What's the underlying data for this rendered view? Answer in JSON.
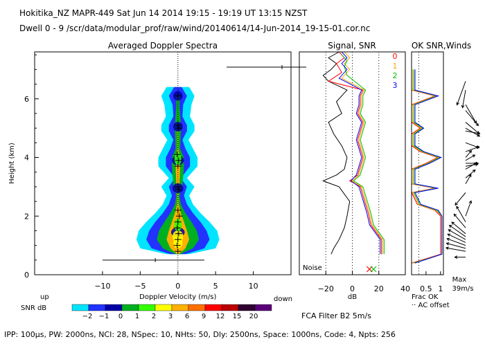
{
  "header": {
    "line1": "Hokitika_NZ  MAPR-449  Sat Jun 14 2014 19:15 - 19:19 UT 13:15 NZST",
    "line2": "Dwell  0 - 9  /scr/data/modular_prof/raw/wind/20140614/14-Jun-2014_19-15-01.cor.nc"
  },
  "footer": "IPP: 100μs,  PW: 2000ns,  NCI: 28,  NSpec: 10,  NHts: 50,  Dly: 2500ns,  Space: 1000ns,  Code: 4,  Npts: 256",
  "colors": {
    "snr_scale": [
      "#00e5ff",
      "#2233ff",
      "#0000a8",
      "#00b020",
      "#33ff00",
      "#ffff00",
      "#ffb000",
      "#ff7000",
      "#ff0000",
      "#bb0000",
      "#300030",
      "#5a007a"
    ],
    "consensus": [
      "#ff0000",
      "#ffa500",
      "#00c000",
      "#0000ff"
    ]
  },
  "chart_data": [
    {
      "type": "heatmap",
      "title": "Averaged Doppler Spectra",
      "xlabel": "Doppler Velocity (m/s)",
      "ylabel": "Height (km)",
      "xlim": [
        -19,
        15
      ],
      "ylim": [
        0,
        7.6
      ],
      "xticks": [
        -10,
        -5,
        0,
        5,
        10
      ],
      "yticks": [
        0,
        2,
        4,
        6
      ],
      "up_label": "up",
      "down_label": "down",
      "colorbar": {
        "label": "SNR dB",
        "levels": [
          "-2",
          "-1",
          "0",
          "1",
          "2",
          "3",
          "6",
          "9",
          "12",
          "15",
          "20"
        ]
      },
      "peak_velocity_km": [
        [
          0.8,
          0.0
        ],
        [
          1.0,
          -0.1
        ],
        [
          1.2,
          0.0
        ],
        [
          1.4,
          0.1
        ],
        [
          1.6,
          -0.1
        ],
        [
          1.8,
          0.0
        ],
        [
          2.0,
          0.2
        ],
        [
          2.2,
          0.0
        ],
        [
          2.9,
          0.1
        ],
        [
          3.0,
          0.0
        ],
        [
          3.7,
          0.0
        ],
        [
          3.9,
          0.1
        ],
        [
          4.1,
          -0.1
        ],
        [
          5.0,
          0.1
        ],
        [
          5.1,
          0.0
        ],
        [
          6.1,
          0.0
        ]
      ],
      "profile_widths": [
        [
          0.7,
          [
            1.5,
            1.0,
            0.3,
            0.1
          ]
        ],
        [
          0.9,
          [
            5.0,
            3.5,
            2.0,
            1.0
          ]
        ],
        [
          1.2,
          [
            5.5,
            4.2,
            2.8,
            1.5
          ]
        ],
        [
          1.5,
          [
            5.2,
            3.8,
            2.5,
            1.2
          ]
        ],
        [
          1.8,
          [
            4.2,
            3.0,
            1.8,
            0.8
          ]
        ],
        [
          2.1,
          [
            3.0,
            2.0,
            1.0,
            0.4
          ]
        ],
        [
          2.4,
          [
            2.0,
            1.2,
            0.4,
            0.1
          ]
        ],
        [
          2.7,
          [
            1.5,
            0.8,
            0.2,
            0.05
          ]
        ],
        [
          3.0,
          [
            2.2,
            1.2,
            0.6,
            0.2
          ]
        ],
        [
          3.3,
          [
            1.2,
            0.4,
            0.0,
            0.0
          ]
        ],
        [
          3.7,
          [
            2.6,
            1.6,
            0.8,
            0.3
          ]
        ],
        [
          4.0,
          [
            2.6,
            1.6,
            0.8,
            0.3
          ]
        ],
        [
          4.3,
          [
            2.0,
            1.0,
            0.3,
            0.05
          ]
        ],
        [
          4.6,
          [
            1.4,
            0.6,
            0.0,
            0.0
          ]
        ],
        [
          4.9,
          [
            2.2,
            1.2,
            0.4,
            0.05
          ]
        ],
        [
          5.1,
          [
            2.2,
            1.2,
            0.4,
            0.05
          ]
        ],
        [
          5.4,
          [
            1.6,
            0.6,
            0.0,
            0.0
          ]
        ],
        [
          5.8,
          [
            1.8,
            0.7,
            0.2,
            0.0
          ]
        ],
        [
          6.1,
          [
            2.2,
            1.2,
            0.3,
            0.0
          ]
        ],
        [
          6.4,
          [
            1.5,
            0.5,
            0.0,
            0.0
          ]
        ]
      ],
      "spike": {
        "height": 0.5,
        "x_start": -10,
        "x_end": 3.5,
        "tick_x": -3
      }
    },
    {
      "type": "line",
      "title": "Signal, SNR",
      "xlabel": "dB",
      "xlim": [
        -40,
        40
      ],
      "ylim": [
        0,
        7.6
      ],
      "xticks": [
        -20,
        0,
        20,
        40
      ],
      "noise_label": "Noise",
      "noise_lines_x": [
        -20,
        0,
        20
      ],
      "series": [
        {
          "name": "signal",
          "points": [
            [
              -16,
              0.7
            ],
            [
              -14,
              0.9
            ],
            [
              -10,
              1.2
            ],
            [
              -6,
              1.6
            ],
            [
              -4,
              2.0
            ],
            [
              -2,
              2.5
            ],
            [
              -10,
              3.0
            ],
            [
              -22,
              3.2
            ],
            [
              -12,
              3.4
            ],
            [
              -6,
              3.6
            ],
            [
              -4,
              4.0
            ],
            [
              -8,
              4.4
            ],
            [
              -14,
              4.8
            ],
            [
              -18,
              5.2
            ],
            [
              -8,
              5.5
            ],
            [
              -12,
              5.9
            ],
            [
              -6,
              6.2
            ],
            [
              -4,
              6.3
            ],
            [
              -18,
              6.6
            ],
            [
              -22,
              6.8
            ],
            [
              -16,
              7.0
            ],
            [
              -12,
              7.2
            ],
            [
              -18,
              7.4
            ],
            [
              -10,
              7.6
            ]
          ]
        },
        {
          "name": "0",
          "points": [
            [
              22,
              0.7
            ],
            [
              22,
              1.2
            ],
            [
              14,
              1.7
            ],
            [
              12,
              2.1
            ],
            [
              10,
              2.4
            ],
            [
              8,
              2.7
            ],
            [
              6,
              3.0
            ],
            [
              -2,
              3.2
            ],
            [
              4,
              3.4
            ],
            [
              6,
              3.7
            ],
            [
              8,
              4.0
            ],
            [
              6,
              4.3
            ],
            [
              4,
              4.6
            ],
            [
              6,
              4.9
            ],
            [
              8,
              5.2
            ],
            [
              4,
              5.5
            ],
            [
              6,
              5.8
            ],
            [
              6,
              6.1
            ],
            [
              8,
              6.3
            ],
            [
              -18,
              6.6
            ],
            [
              -8,
              6.9
            ],
            [
              -12,
              7.2
            ],
            [
              -6,
              7.4
            ],
            [
              -10,
              7.6
            ]
          ]
        },
        {
          "name": "1",
          "points": [
            [
              23,
              0.7
            ],
            [
              23,
              1.2
            ],
            [
              15,
              1.7
            ],
            [
              13,
              2.1
            ],
            [
              11,
              2.4
            ],
            [
              9,
              2.7
            ],
            [
              7,
              3.0
            ],
            [
              0,
              3.2
            ],
            [
              5,
              3.4
            ],
            [
              7,
              3.7
            ],
            [
              9,
              4.0
            ],
            [
              7,
              4.3
            ],
            [
              5,
              4.6
            ],
            [
              7,
              4.9
            ],
            [
              9,
              5.2
            ],
            [
              5,
              5.5
            ],
            [
              7,
              5.8
            ],
            [
              7,
              6.1
            ],
            [
              9,
              6.3
            ],
            [
              -8,
              6.7
            ],
            [
              -2,
              7.0
            ],
            [
              -6,
              7.2
            ],
            [
              -2,
              7.4
            ],
            [
              -6,
              7.6
            ]
          ]
        },
        {
          "name": "2",
          "points": [
            [
              24,
              0.7
            ],
            [
              24,
              1.2
            ],
            [
              16,
              1.7
            ],
            [
              14,
              2.1
            ],
            [
              12,
              2.4
            ],
            [
              10,
              2.7
            ],
            [
              8,
              3.0
            ],
            [
              1,
              3.2
            ],
            [
              6,
              3.4
            ],
            [
              8,
              3.7
            ],
            [
              10,
              4.0
            ],
            [
              8,
              4.3
            ],
            [
              6,
              4.6
            ],
            [
              8,
              4.9
            ],
            [
              10,
              5.2
            ],
            [
              6,
              5.5
            ],
            [
              8,
              5.8
            ],
            [
              8,
              6.1
            ],
            [
              10,
              6.3
            ],
            [
              -4,
              6.8
            ],
            [
              -6,
              7.1
            ],
            [
              -4,
              7.3
            ],
            [
              -8,
              7.5
            ]
          ]
        },
        {
          "name": "3",
          "points": [
            [
              21,
              0.7
            ],
            [
              21,
              1.2
            ],
            [
              13,
              1.7
            ],
            [
              11,
              2.1
            ],
            [
              9,
              2.4
            ],
            [
              7,
              2.7
            ],
            [
              5,
              3.0
            ],
            [
              -1,
              3.2
            ],
            [
              3,
              3.4
            ],
            [
              5,
              3.7
            ],
            [
              7,
              4.0
            ],
            [
              5,
              4.3
            ],
            [
              3,
              4.6
            ],
            [
              5,
              4.9
            ],
            [
              7,
              5.2
            ],
            [
              3,
              5.5
            ],
            [
              5,
              5.8
            ],
            [
              5,
              6.1
            ],
            [
              7,
              6.3
            ],
            [
              -10,
              6.7
            ],
            [
              -4,
              7.0
            ],
            [
              -8,
              7.2
            ],
            [
              -4,
              7.4
            ],
            [
              -8,
              7.6
            ]
          ]
        }
      ],
      "legend": [
        "0",
        "1",
        "2",
        "3"
      ]
    },
    {
      "type": "line",
      "title": "OK SNR,Winds",
      "xlim": [
        0,
        1.1
      ],
      "ylim": [
        0,
        7.6
      ],
      "xticks": [
        0.5,
        1
      ],
      "xtick_labels": [
        "0.5",
        "1"
      ],
      "frac_label": "Frac OK",
      "ac_label": "·· AC offset",
      "max_label": "Max",
      "max_value_label": "39m/s",
      "series": [
        {
          "name": "frac_ok",
          "points": [
            [
              0.0,
              0.4
            ],
            [
              1.0,
              0.7
            ],
            [
              1.0,
              2.0
            ],
            [
              0.8,
              2.2
            ],
            [
              0.2,
              2.4
            ],
            [
              0.0,
              2.8
            ],
            [
              0.8,
              2.95
            ],
            [
              0.0,
              3.1
            ],
            [
              0.0,
              3.6
            ],
            [
              0.5,
              3.8
            ],
            [
              0.9,
              4.0
            ],
            [
              0.3,
              4.2
            ],
            [
              0.0,
              4.4
            ],
            [
              0.0,
              4.8
            ],
            [
              0.3,
              5.0
            ],
            [
              0.0,
              5.2
            ],
            [
              0.0,
              5.8
            ],
            [
              0.8,
              6.1
            ],
            [
              0.0,
              6.3
            ],
            [
              0.0,
              7.0
            ]
          ]
        }
      ],
      "winds": [
        [
          0.6,
          270,
          12
        ],
        [
          0.8,
          280,
          22
        ],
        [
          0.9,
          285,
          22
        ],
        [
          1.0,
          290,
          22
        ],
        [
          1.1,
          295,
          22
        ],
        [
          1.2,
          300,
          22
        ],
        [
          1.3,
          305,
          22
        ],
        [
          1.4,
          310,
          20
        ],
        [
          1.6,
          320,
          20
        ],
        [
          1.8,
          330,
          20
        ],
        [
          2.0,
          20,
          18
        ],
        [
          2.8,
          220,
          18
        ],
        [
          3.1,
          30,
          12
        ],
        [
          3.3,
          50,
          14
        ],
        [
          3.6,
          60,
          14
        ],
        [
          3.7,
          80,
          14
        ],
        [
          3.8,
          90,
          14
        ],
        [
          3.9,
          60,
          12
        ],
        [
          4.0,
          40,
          10
        ],
        [
          4.2,
          70,
          16
        ],
        [
          4.5,
          110,
          16
        ],
        [
          4.9,
          100,
          16
        ],
        [
          5.0,
          120,
          18
        ],
        [
          5.2,
          130,
          20
        ],
        [
          5.6,
          140,
          22
        ],
        [
          5.8,
          150,
          24
        ],
        [
          6.3,
          190,
          20
        ],
        [
          6.6,
          200,
          28
        ]
      ]
    }
  ]
}
